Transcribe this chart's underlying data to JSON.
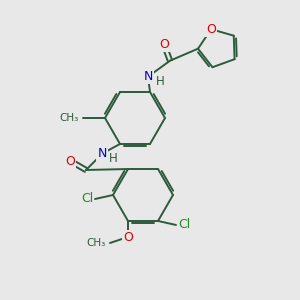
{
  "bg_color": "#e8e8e8",
  "bond_color": "#2d5a3d",
  "atom_colors": {
    "O": "#e00000",
    "N": "#0000cc",
    "Cl": "#228b22",
    "C": "#2d5a3d",
    "H": "#2d5a3d"
  },
  "figsize": [
    3.0,
    3.0
  ],
  "dpi": 100
}
